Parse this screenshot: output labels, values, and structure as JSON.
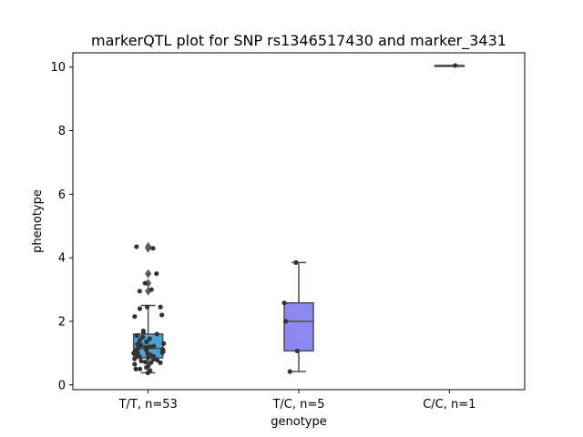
{
  "chart_data": {
    "type": "box",
    "title": "markerQTL plot for SNP rs1346517430 and marker_3431",
    "xlabel": "genotype",
    "ylabel": "phenotype",
    "ylim": [
      -0.15,
      10.45
    ],
    "yticks": [
      0,
      2,
      4,
      6,
      8,
      10
    ],
    "grid": false,
    "categories": [
      "T/T, n=53",
      "T/C, n=5",
      "C/C, n=1"
    ],
    "boxes": [
      {
        "category": "T/T, n=53",
        "color": "#4aa3d8",
        "q1": 0.85,
        "median": 1.15,
        "q3": 1.6,
        "whisker_low": 0.38,
        "whisker_high": 2.5,
        "outliers": [
          2.95,
          3.2,
          3.5,
          4.35,
          4.3
        ],
        "points": [
          0.38,
          0.45,
          0.5,
          0.5,
          0.55,
          0.6,
          0.65,
          0.7,
          0.7,
          0.72,
          0.75,
          0.78,
          0.8,
          0.82,
          0.85,
          0.88,
          0.9,
          0.92,
          0.95,
          0.98,
          1.0,
          1.0,
          1.02,
          1.05,
          1.08,
          1.1,
          1.12,
          1.15,
          1.18,
          1.2,
          1.22,
          1.25,
          1.28,
          1.3,
          1.35,
          1.4,
          1.45,
          1.5,
          1.55,
          1.6,
          1.65,
          1.7,
          2.15,
          2.2,
          2.4,
          2.45,
          2.45,
          2.95,
          3.0,
          3.2,
          3.5,
          4.3,
          4.35
        ]
      },
      {
        "category": "T/C, n=5",
        "color": "#8c88f2",
        "q1": 1.07,
        "median": 2.0,
        "q3": 2.58,
        "whisker_low": 0.42,
        "whisker_high": 3.85,
        "outliers": [],
        "points": [
          0.42,
          1.07,
          2.0,
          2.58,
          3.85
        ]
      },
      {
        "category": "C/C, n=1",
        "color": "#c98be0",
        "q1": 10.05,
        "median": 10.05,
        "q3": 10.05,
        "whisker_low": 10.05,
        "whisker_high": 10.05,
        "outliers": [],
        "points": [
          10.05
        ]
      }
    ]
  }
}
